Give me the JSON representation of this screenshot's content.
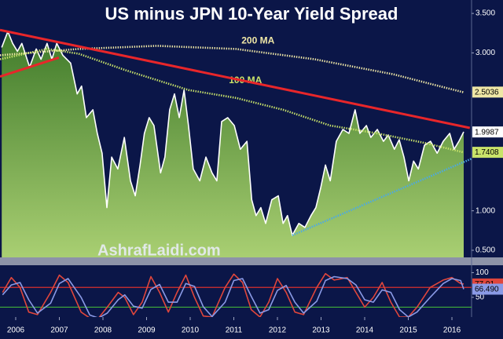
{
  "chart_data": [
    {
      "type": "line",
      "title": "US minus JPN 10-Year Yield Spread",
      "watermark": "AshrafLaidi.com",
      "xlim": [
        2005.64,
        2016.45
      ],
      "ylim": [
        0.41,
        3.67
      ],
      "yticks": [
        {
          "value": 0.5,
          "label": "0.500"
        },
        {
          "value": 1,
          "label": "1.000"
        },
        {
          "value": 3,
          "label": "3.000"
        },
        {
          "value": 3.5,
          "label": "3.500"
        }
      ],
      "series": [
        {
          "color": "#ffffff",
          "area": true,
          "last_label": 1.9987,
          "x": [
            2005.68,
            2005.82,
            2005.93,
            2006.04,
            2006.14,
            2006.32,
            2006.47,
            2006.58,
            2006.72,
            2006.83,
            2006.94,
            2007.08,
            2007.26,
            2007.41,
            2007.51,
            2007.62,
            2007.77,
            2007.87,
            2007.98,
            2008.09,
            2008.2,
            2008.34,
            2008.49,
            2008.63,
            2008.74,
            2008.85,
            2008.95,
            2009.06,
            2009.17,
            2009.32,
            2009.42,
            2009.53,
            2009.64,
            2009.75,
            2009.86,
            2009.96,
            2010.07,
            2010.22,
            2010.36,
            2010.5,
            2010.61,
            2010.72,
            2010.86,
            2011.01,
            2011.15,
            2011.3,
            2011.41,
            2011.51,
            2011.62,
            2011.73,
            2011.87,
            2012.02,
            2012.13,
            2012.23,
            2012.34,
            2012.49,
            2012.63,
            2012.77,
            2012.88,
            2012.99,
            2013.1,
            2013.21,
            2013.35,
            2013.5,
            2013.64,
            2013.78,
            2013.89,
            2014.04,
            2014.14,
            2014.29,
            2014.43,
            2014.54,
            2014.68,
            2014.79,
            2014.9,
            2015.01,
            2015.12,
            2015.23,
            2015.37,
            2015.51,
            2015.66,
            2015.8,
            2015.95,
            2016.05,
            2016.16,
            2016.27
          ],
          "values": [
            3.07,
            3.27,
            3.12,
            3.02,
            3.12,
            2.82,
            3.05,
            2.92,
            3.12,
            2.92,
            3.12,
            2.97,
            2.87,
            2.48,
            2.58,
            2.18,
            2.28,
            1.98,
            1.73,
            1.04,
            1.68,
            1.53,
            1.93,
            1.38,
            1.19,
            1.58,
            1.98,
            2.18,
            2.08,
            1.48,
            1.68,
            2.28,
            2.48,
            2.18,
            2.53,
            2.08,
            1.53,
            1.38,
            1.68,
            1.48,
            1.38,
            2.13,
            2.18,
            2.08,
            1.78,
            1.88,
            1.14,
            0.94,
            1.04,
            0.84,
            1.14,
            1.19,
            0.84,
            0.94,
            0.69,
            0.84,
            0.79,
            0.94,
            1.04,
            1.29,
            1.58,
            1.38,
            1.88,
            2.03,
            1.98,
            2.28,
            1.98,
            2.08,
            1.93,
            2.03,
            1.88,
            1.96,
            1.78,
            1.9,
            1.68,
            1.38,
            1.63,
            1.53,
            1.83,
            1.88,
            1.73,
            1.88,
            1.98,
            1.78,
            1.88,
            2.0
          ]
        },
        {
          "name": "200 MA",
          "color": "#efe7a6",
          "dotted": true,
          "last_label": 2.5036,
          "x": [
            2005.64,
            2007.44,
            2009.24,
            2011.05,
            2012.85,
            2014.65,
            2016.27
          ],
          "values": [
            2.97,
            3.05,
            3.09,
            3.05,
            2.92,
            2.73,
            2.5
          ]
        },
        {
          "name": "100 MA",
          "color": "#c9e36a",
          "dotted": true,
          "last_label": 1.7408,
          "x": [
            2005.64,
            2006.72,
            2007.44,
            2008.52,
            2009.96,
            2011.05,
            2012.13,
            2013.21,
            2014.29,
            2015.37,
            2016.27
          ],
          "values": [
            2.92,
            3.05,
            2.99,
            2.78,
            2.53,
            2.43,
            2.28,
            2.08,
            1.98,
            1.86,
            1.74
          ]
        },
        {
          "color": "#e8262a",
          "x": [
            2005.64,
            2016.41
          ],
          "values": [
            3.29,
            2.05
          ]
        },
        {
          "color": "#e8262a",
          "x": [
            2005.64,
            2006.99
          ],
          "values": [
            2.7,
            2.94
          ]
        },
        {
          "color": "#4aa8e8",
          "dotted": true,
          "x": [
            2012.34,
            2016.45
          ],
          "values": [
            0.69,
            1.66
          ]
        }
      ]
    },
    {
      "type": "line",
      "xlim": [
        2005.64,
        2016.45
      ],
      "xticks": [
        2006,
        2007,
        2008,
        2009,
        2010,
        2011,
        2012,
        2013,
        2014,
        2015,
        2016
      ],
      "ylim": [
        10,
        115
      ],
      "yticks": [
        50,
        100
      ],
      "levels": [
        {
          "value": 70,
          "color": "#d8302c"
        },
        {
          "value": 30,
          "color": "#3fae3a"
        }
      ],
      "series": [
        {
          "color": "#e0463c",
          "last_label": 77.01,
          "x": [
            2005.7,
            2005.9,
            2006.1,
            2006.3,
            2006.5,
            2006.8,
            2007.0,
            2007.2,
            2007.5,
            2007.7,
            2007.9,
            2008.1,
            2008.35,
            2008.5,
            2008.7,
            2008.9,
            2009.1,
            2009.3,
            2009.5,
            2009.7,
            2009.9,
            2010.1,
            2010.3,
            2010.5,
            2010.8,
            2011.0,
            2011.2,
            2011.4,
            2011.6,
            2011.8,
            2012.0,
            2012.2,
            2012.4,
            2012.6,
            2012.9,
            2013.1,
            2013.3,
            2013.6,
            2013.8,
            2014.0,
            2014.2,
            2014.4,
            2014.6,
            2014.8,
            2015.0,
            2015.2,
            2015.5,
            2015.8,
            2016.0,
            2016.2,
            2016.27
          ],
          "values": [
            60,
            90,
            70,
            20,
            15,
            60,
            95,
            80,
            20,
            8,
            8,
            30,
            60,
            50,
            15,
            40,
            92,
            60,
            20,
            60,
            95,
            50,
            12,
            10,
            70,
            97,
            80,
            25,
            10,
            40,
            88,
            60,
            20,
            15,
            70,
            98,
            85,
            90,
            60,
            30,
            50,
            80,
            40,
            10,
            10,
            30,
            70,
            85,
            90,
            78,
            77.01
          ]
        },
        {
          "color": "#8a9ae6",
          "last_label": {
            "value": 66.49,
            "label": "66.490"
          },
          "x": [
            2005.7,
            2005.9,
            2006.1,
            2006.3,
            2006.5,
            2006.8,
            2007.0,
            2007.2,
            2007.5,
            2007.7,
            2007.9,
            2008.1,
            2008.35,
            2008.5,
            2008.7,
            2008.9,
            2009.1,
            2009.3,
            2009.5,
            2009.7,
            2009.9,
            2010.1,
            2010.3,
            2010.5,
            2010.8,
            2011.0,
            2011.2,
            2011.4,
            2011.6,
            2011.8,
            2012.0,
            2012.2,
            2012.4,
            2012.6,
            2012.9,
            2013.1,
            2013.3,
            2013.6,
            2013.8,
            2014.0,
            2014.2,
            2014.4,
            2014.6,
            2014.8,
            2015.0,
            2015.2,
            2015.5,
            2015.8,
            2016.0,
            2016.2,
            2016.27
          ],
          "values": [
            55,
            75,
            80,
            45,
            18,
            38,
            78,
            88,
            50,
            14,
            8,
            18,
            45,
            55,
            32,
            28,
            66,
            76,
            40,
            40,
            78,
            72,
            31,
            11,
            40,
            84,
            88,
            52,
            18,
            25,
            64,
            74,
            40,
            18,
            42,
            84,
            92,
            88,
            75,
            45,
            40,
            65,
            60,
            25,
            10,
            20,
            50,
            78,
            88,
            84,
            66.49
          ]
        }
      ]
    }
  ]
}
